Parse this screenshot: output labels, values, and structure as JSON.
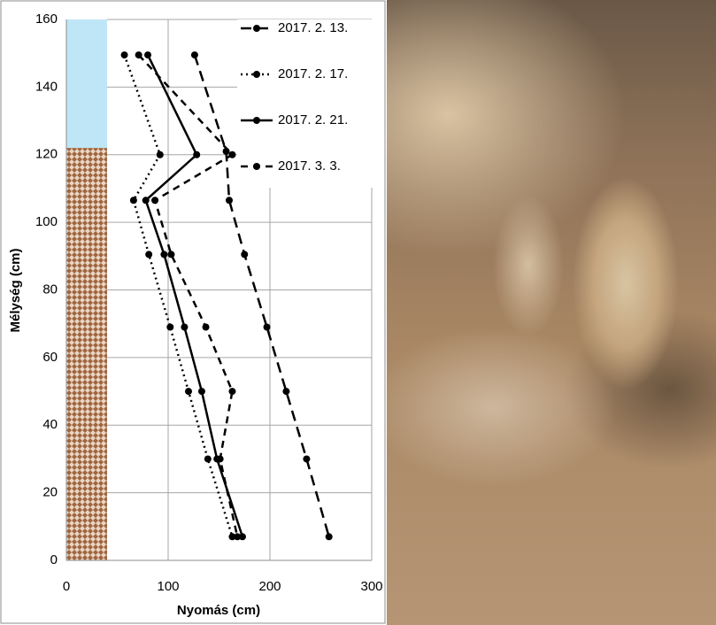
{
  "chart_data": {
    "type": "line",
    "xlabel": "Nyomás  (cm)",
    "ylabel": "Mélység  (cm)",
    "xlim": [
      0,
      300
    ],
    "xticks": [
      0,
      100,
      200,
      300
    ],
    "ylim": [
      0,
      160
    ],
    "yticks": [
      0,
      20,
      40,
      60,
      80,
      100,
      120,
      140,
      160
    ],
    "grid": true,
    "legend": "upper right",
    "bands": [
      {
        "x": [
          0,
          40
        ],
        "y": [
          122,
          160
        ],
        "color": "#bfe6f6"
      },
      {
        "x": [
          0,
          40
        ],
        "y": [
          0,
          122
        ],
        "color": "#a0653f"
      }
    ],
    "series": [
      {
        "name": "2017. 2. 13.",
        "color": "#000000",
        "style": "dashed",
        "x": [
          126,
          157,
          160,
          175,
          197,
          216,
          236,
          258
        ],
        "values": [
          149.5,
          121,
          106.5,
          90.5,
          69,
          50,
          30,
          7
        ]
      },
      {
        "name": "2017. 2. 17.",
        "color": "#000000",
        "style": "dotted",
        "x": [
          57,
          92,
          66,
          81,
          102,
          120,
          139,
          163
        ],
        "values": [
          149.5,
          120,
          106.5,
          90.5,
          69,
          50,
          30,
          7
        ]
      },
      {
        "name": "2017. 2. 21.",
        "color": "#000000",
        "style": "solid",
        "x": [
          80,
          128,
          78,
          96,
          116,
          133,
          148,
          173
        ],
        "values": [
          149.5,
          120,
          106.5,
          90.5,
          69,
          50,
          30,
          7
        ]
      },
      {
        "name": "2017. 3. 3.",
        "color": "#000000",
        "style": "dashdot",
        "x": [
          71,
          163,
          87,
          103,
          137,
          163,
          151,
          168
        ],
        "values": [
          149.5,
          120,
          106.5,
          90.5,
          69,
          50,
          30,
          7
        ]
      }
    ]
  }
}
